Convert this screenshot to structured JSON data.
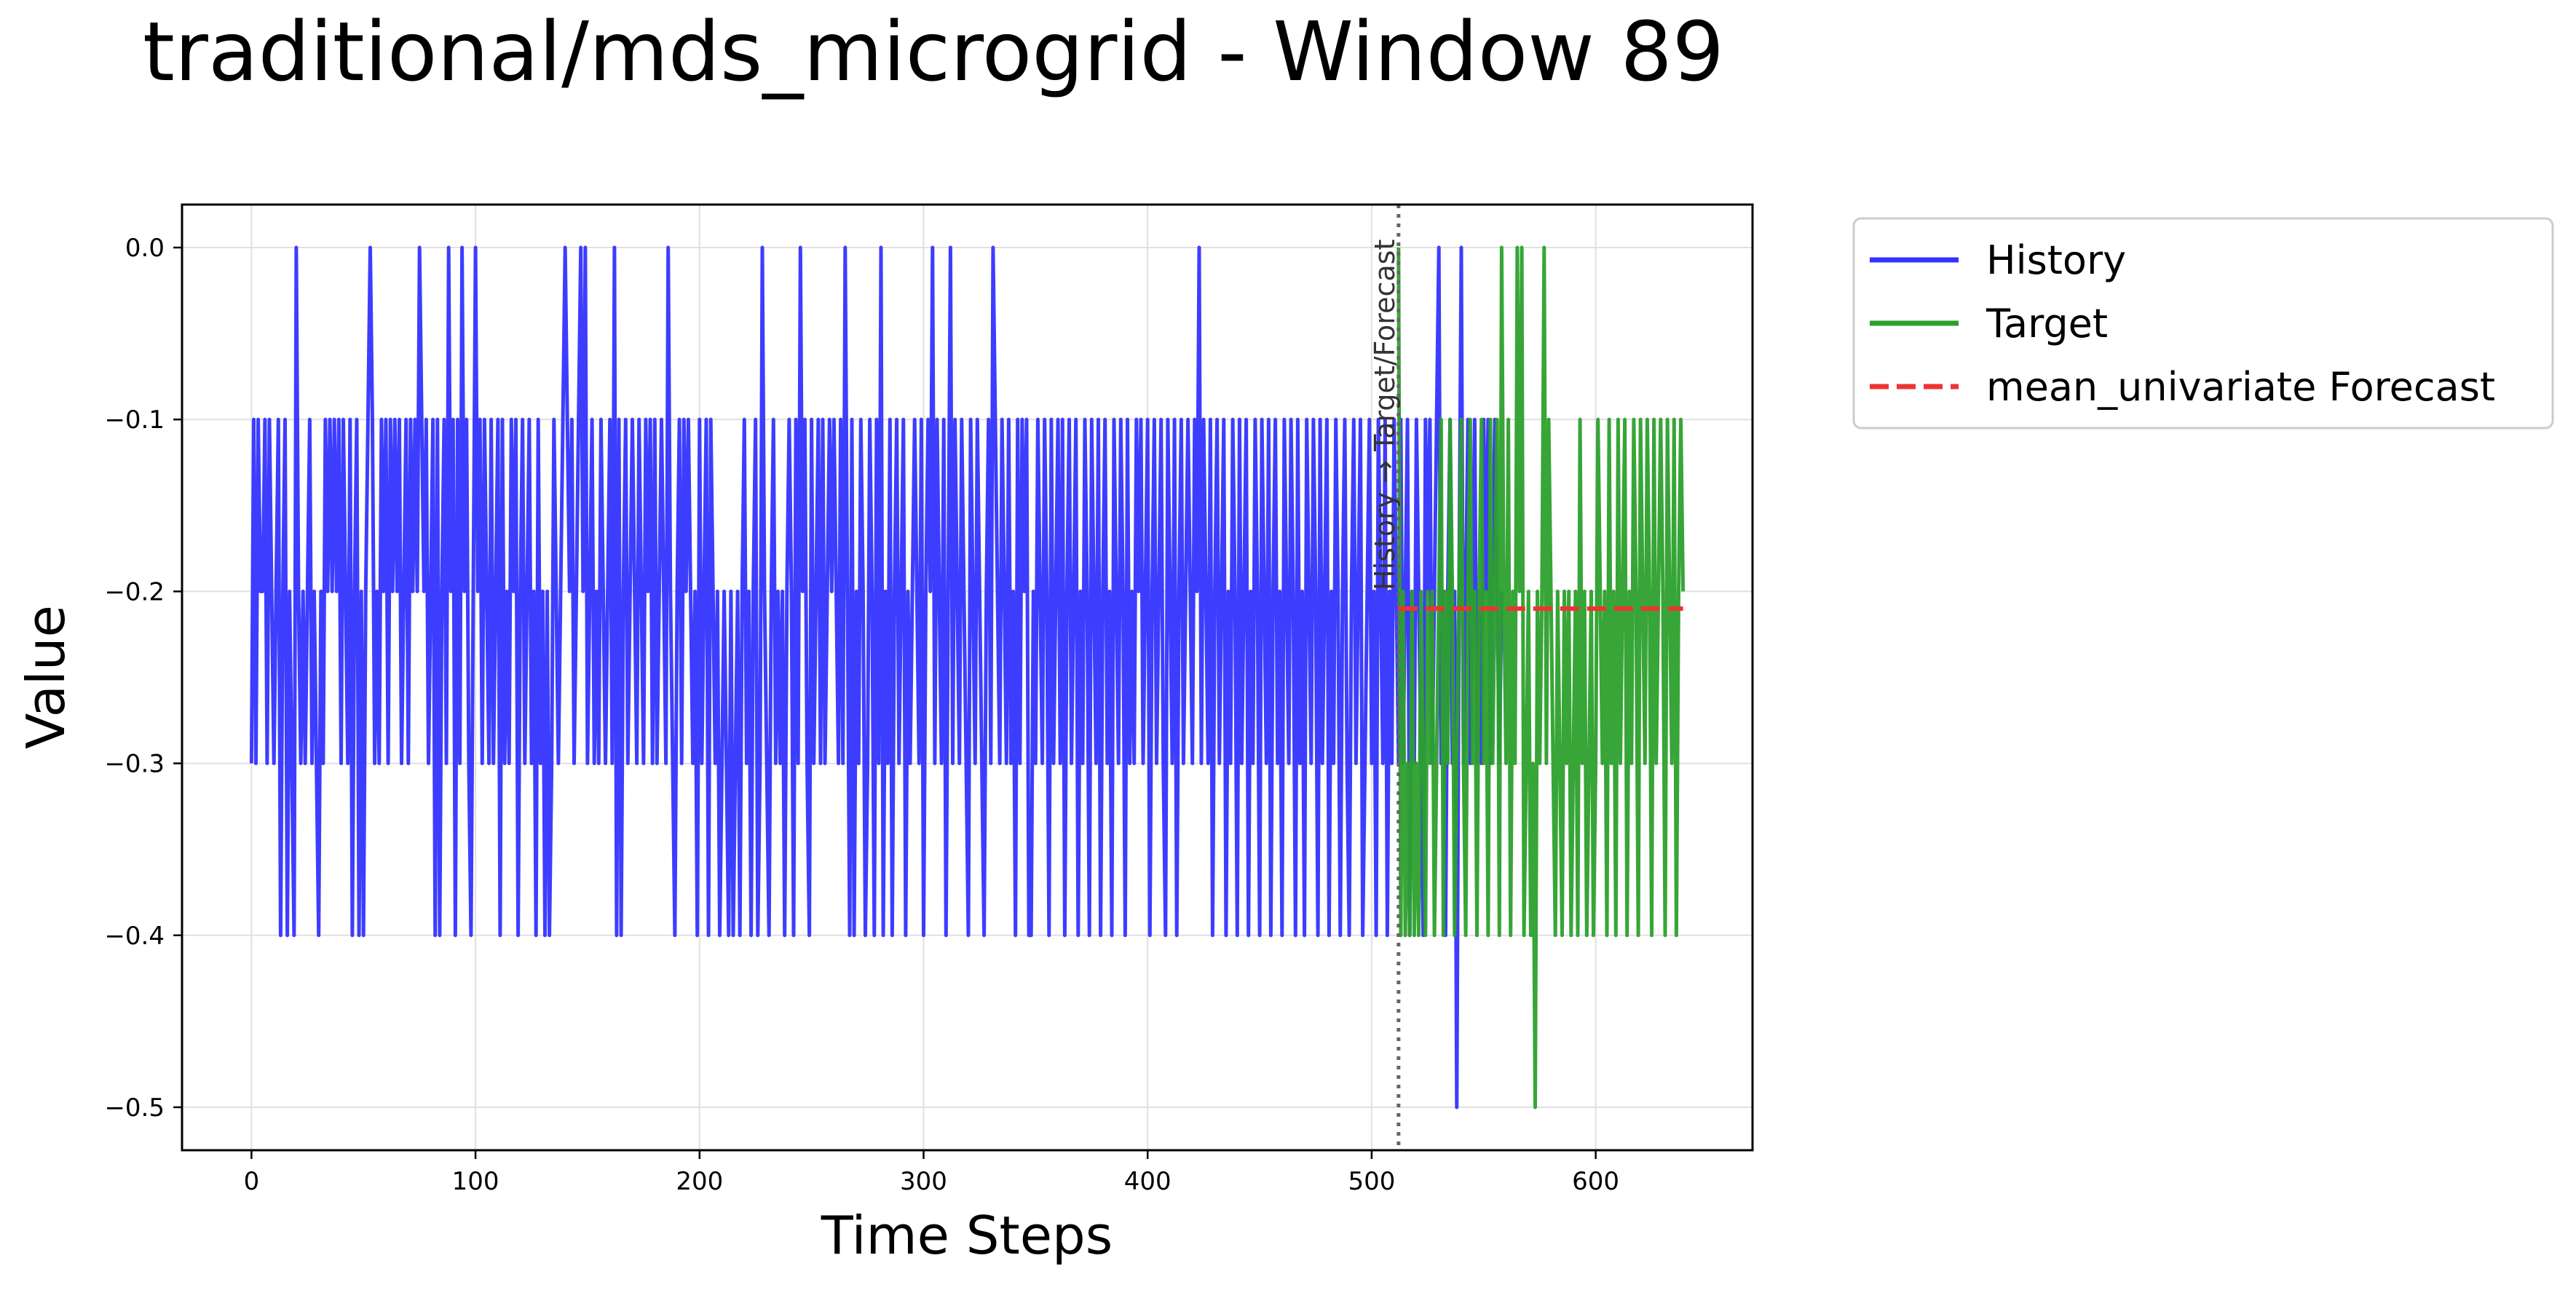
{
  "chart_data": {
    "type": "line",
    "title": "traditional/mds_microgrid - Window 89",
    "xlabel": "Time Steps",
    "ylabel": "Value",
    "xlim": [
      -31,
      670
    ],
    "ylim": [
      -0.525,
      0.025
    ],
    "xticks": [
      0,
      100,
      200,
      300,
      400,
      500,
      600
    ],
    "yticks": [
      0.0,
      -0.1,
      -0.2,
      -0.3,
      -0.4,
      -0.5
    ],
    "ytick_labels": [
      "0.0",
      "−0.1",
      "−0.2",
      "−0.3",
      "−0.4",
      "−0.5"
    ],
    "grid": true,
    "legend_position": "outside-right-top",
    "divider": {
      "x": 512,
      "label": "History → Target/Forecast"
    },
    "series": [
      {
        "name": "History",
        "color": "#3333ff",
        "style": "solid",
        "x_start": 0,
        "values": [
          -0.3,
          -0.1,
          -0.3,
          -0.1,
          -0.2,
          -0.2,
          -0.1,
          -0.3,
          -0.1,
          -0.2,
          -0.3,
          -0.2,
          -0.1,
          -0.4,
          -0.2,
          -0.1,
          -0.4,
          -0.2,
          -0.3,
          -0.4,
          0.0,
          -0.2,
          -0.3,
          -0.2,
          -0.3,
          -0.2,
          -0.1,
          -0.3,
          -0.2,
          -0.3,
          -0.4,
          -0.2,
          -0.3,
          -0.1,
          -0.2,
          -0.1,
          -0.2,
          -0.1,
          -0.2,
          -0.1,
          -0.3,
          -0.1,
          -0.2,
          -0.3,
          -0.1,
          -0.4,
          -0.2,
          -0.1,
          -0.4,
          -0.2,
          -0.4,
          -0.2,
          -0.1,
          0.0,
          -0.1,
          -0.3,
          -0.2,
          -0.3,
          -0.1,
          -0.2,
          -0.1,
          -0.3,
          -0.1,
          -0.2,
          -0.1,
          -0.2,
          -0.1,
          -0.3,
          -0.2,
          -0.1,
          -0.3,
          -0.1,
          -0.2,
          -0.1,
          -0.2,
          0.0,
          -0.1,
          -0.2,
          -0.1,
          -0.3,
          -0.2,
          -0.1,
          -0.4,
          -0.1,
          -0.4,
          -0.2,
          -0.1,
          -0.3,
          0.0,
          -0.2,
          -0.1,
          -0.4,
          -0.1,
          -0.3,
          0.0,
          -0.2,
          -0.1,
          -0.3,
          -0.4,
          -0.2,
          0.0,
          -0.2,
          -0.1,
          -0.3,
          -0.1,
          -0.2,
          -0.3,
          -0.1,
          -0.3,
          -0.2,
          -0.1,
          -0.4,
          -0.1,
          -0.3,
          -0.2,
          -0.3,
          -0.1,
          -0.2,
          -0.1,
          -0.4,
          -0.2,
          -0.1,
          -0.3,
          -0.2,
          -0.1,
          -0.3,
          -0.2,
          -0.4,
          -0.1,
          -0.3,
          -0.2,
          -0.4,
          -0.2,
          -0.4,
          -0.3,
          -0.1,
          -0.2,
          -0.3,
          -0.2,
          -0.1,
          0.0,
          -0.1,
          -0.2,
          -0.1,
          -0.3,
          -0.2,
          -0.1,
          0.0,
          -0.2,
          0.0,
          -0.3,
          -0.2,
          -0.1,
          -0.3,
          -0.2,
          -0.3,
          -0.1,
          -0.2,
          -0.3,
          -0.2,
          -0.1,
          -0.3,
          0.0,
          -0.4,
          -0.1,
          -0.4,
          -0.2,
          -0.1,
          -0.3,
          -0.2,
          -0.1,
          -0.2,
          -0.3,
          -0.1,
          -0.2,
          -0.3,
          -0.1,
          -0.2,
          -0.1,
          -0.3,
          -0.1,
          -0.3,
          -0.2,
          -0.1,
          -0.2,
          -0.3,
          0.0,
          -0.2,
          -0.3,
          -0.4,
          -0.2,
          -0.1,
          -0.3,
          -0.1,
          -0.2,
          -0.1,
          -0.2,
          -0.3,
          -0.2,
          -0.4,
          -0.1,
          -0.3,
          -0.2,
          -0.1,
          -0.4,
          -0.1,
          -0.2,
          -0.3,
          -0.2,
          -0.4,
          -0.3,
          -0.2,
          -0.3,
          -0.4,
          -0.2,
          -0.4,
          -0.3,
          -0.2,
          -0.4,
          -0.2,
          -0.1,
          -0.3,
          -0.2,
          -0.4,
          -0.2,
          -0.1,
          -0.4,
          -0.3,
          0.0,
          -0.2,
          -0.3,
          -0.4,
          -0.2,
          -0.1,
          -0.3,
          -0.2,
          -0.3,
          -0.2,
          -0.4,
          -0.2,
          -0.1,
          -0.2,
          -0.4,
          -0.1,
          -0.3,
          0.0,
          -0.2,
          -0.1,
          -0.3,
          -0.4,
          -0.1,
          -0.3,
          -0.2,
          -0.1,
          -0.3,
          -0.1,
          -0.3,
          -0.2,
          -0.1,
          -0.2,
          -0.1,
          -0.2,
          -0.3,
          -0.1,
          -0.3,
          0.0,
          -0.2,
          -0.4,
          -0.1,
          -0.4,
          -0.2,
          -0.3,
          -0.1,
          -0.2,
          -0.4,
          -0.3,
          -0.1,
          -0.2,
          -0.4,
          -0.1,
          -0.3,
          0.0,
          -0.4,
          -0.2,
          -0.3,
          -0.1,
          -0.4,
          -0.2,
          -0.1,
          -0.3,
          -0.2,
          -0.1,
          -0.4,
          -0.2,
          -0.3,
          -0.2,
          -0.1,
          -0.2,
          -0.3,
          -0.1,
          -0.4,
          -0.2,
          -0.1,
          -0.2,
          0.0,
          -0.3,
          -0.1,
          -0.2,
          -0.3,
          -0.1,
          -0.4,
          -0.2,
          0.0,
          -0.3,
          -0.1,
          -0.2,
          -0.3,
          -0.1,
          -0.2,
          -0.3,
          -0.4,
          -0.1,
          -0.2,
          -0.3,
          -0.1,
          -0.2,
          -0.3,
          -0.4,
          -0.2,
          -0.1,
          -0.3,
          0.0,
          -0.1,
          -0.2,
          -0.3,
          -0.1,
          -0.2,
          -0.3,
          -0.1,
          -0.3,
          -0.2,
          -0.4,
          -0.1,
          -0.3,
          -0.1,
          -0.2,
          -0.1,
          -0.4,
          -0.4,
          -0.2,
          -0.3,
          -0.1,
          -0.2,
          -0.3,
          -0.1,
          -0.2,
          -0.4,
          -0.1,
          -0.3,
          -0.2,
          -0.1,
          -0.3,
          -0.1,
          -0.4,
          -0.2,
          -0.1,
          -0.3,
          -0.2,
          -0.1,
          -0.4,
          -0.2,
          -0.3,
          -0.1,
          -0.2,
          -0.4,
          -0.1,
          -0.2,
          -0.3,
          -0.1,
          -0.4,
          -0.2,
          -0.1,
          -0.3,
          -0.2,
          -0.4,
          -0.1,
          -0.2,
          -0.3,
          -0.1,
          -0.2,
          -0.4,
          -0.1,
          -0.3,
          -0.2,
          -0.3,
          -0.1,
          -0.2,
          -0.1,
          -0.3,
          -0.2,
          -0.1,
          -0.4,
          -0.2,
          -0.1,
          -0.3,
          -0.2,
          -0.1,
          -0.3,
          -0.4,
          -0.1,
          -0.2,
          -0.3,
          -0.1,
          -0.4,
          -0.2,
          -0.1,
          -0.3,
          -0.2,
          -0.1,
          -0.2,
          -0.3,
          -0.1,
          -0.2,
          0.0,
          -0.3,
          -0.1,
          -0.2,
          -0.3,
          -0.1,
          -0.4,
          -0.2,
          -0.1,
          -0.3,
          -0.2,
          -0.1,
          -0.4,
          -0.2,
          -0.3,
          -0.1,
          -0.2,
          -0.4,
          -0.1,
          -0.3,
          -0.2,
          -0.1,
          -0.4,
          -0.2,
          -0.3,
          -0.1,
          -0.2,
          -0.4,
          -0.1,
          -0.2,
          -0.3,
          -0.1,
          -0.4,
          -0.2,
          -0.1,
          -0.3,
          -0.2,
          -0.4,
          -0.1,
          -0.2,
          -0.3,
          -0.1,
          -0.2,
          -0.4,
          -0.1,
          -0.3,
          -0.2,
          -0.4,
          -0.1,
          -0.2,
          -0.3,
          -0.1,
          -0.2,
          -0.4,
          -0.1,
          -0.3,
          -0.2,
          -0.1,
          -0.4,
          -0.2,
          -0.3,
          -0.1,
          -0.2,
          -0.4,
          -0.2,
          -0.1,
          -0.3,
          -0.4,
          -0.2,
          -0.1,
          -0.3,
          -0.2,
          -0.1,
          -0.4,
          -0.3,
          -0.2,
          -0.1,
          -0.3,
          -0.2,
          -0.4,
          -0.1,
          -0.2,
          -0.3,
          -0.1,
          -0.4,
          -0.2,
          -0.3,
          -0.1,
          -0.2,
          -0.3,
          -0.1,
          -0.3,
          -0.2,
          -0.1,
          -0.4,
          -0.2,
          -0.3,
          -0.1,
          -0.2,
          -0.3,
          -0.4,
          -0.1,
          -0.2,
          -0.1,
          -0.3,
          -0.2,
          -0.1,
          0.0,
          -0.3,
          -0.2,
          -0.4,
          -0.2,
          -0.1,
          -0.3,
          -0.2,
          -0.5,
          -0.2,
          0.0,
          -0.3,
          -0.2,
          -0.1,
          -0.3,
          -0.2,
          -0.1,
          -0.3,
          -0.2,
          -0.3,
          -0.1,
          -0.2,
          -0.1,
          -0.3,
          -0.2,
          -0.1,
          -0.2,
          -0.3,
          -0.2
        ]
      },
      {
        "name": "Target",
        "color": "#2ca02c",
        "style": "solid",
        "x_start": 512,
        "values": [
          0.0,
          -0.4,
          -0.2,
          -0.4,
          -0.3,
          -0.4,
          -0.2,
          -0.4,
          -0.3,
          -0.4,
          -0.2,
          -0.3,
          -0.4,
          -0.2,
          -0.3,
          -0.2,
          -0.4,
          -0.3,
          -0.2,
          -0.1,
          -0.4,
          -0.2,
          -0.3,
          -0.1,
          -0.2,
          -0.4,
          -0.3,
          -0.2,
          -0.1,
          -0.3,
          -0.4,
          -0.2,
          -0.1,
          -0.3,
          -0.2,
          -0.4,
          -0.2,
          -0.1,
          -0.3,
          -0.2,
          -0.4,
          -0.1,
          -0.3,
          -0.2,
          -0.1,
          -0.4,
          0.0,
          -0.2,
          -0.3,
          -0.1,
          -0.4,
          -0.2,
          -0.3,
          0.0,
          -0.2,
          0.0,
          -0.4,
          -0.3,
          -0.2,
          -0.4,
          -0.3,
          -0.5,
          -0.2,
          -0.3,
          -0.2,
          0.0,
          -0.3,
          -0.1,
          -0.2,
          -0.3,
          -0.4,
          -0.2,
          -0.3,
          -0.4,
          -0.2,
          -0.3,
          -0.2,
          -0.4,
          -0.3,
          -0.2,
          -0.4,
          -0.1,
          -0.3,
          -0.2,
          -0.4,
          -0.3,
          -0.2,
          -0.4,
          -0.3,
          -0.1,
          -0.2,
          -0.3,
          -0.2,
          -0.4,
          -0.1,
          -0.3,
          -0.2,
          -0.4,
          -0.1,
          -0.3,
          -0.2,
          -0.1,
          -0.4,
          -0.2,
          -0.3,
          -0.1,
          -0.2,
          -0.4,
          -0.1,
          -0.2,
          -0.3,
          -0.1,
          -0.2,
          -0.4,
          -0.1,
          -0.3,
          -0.2,
          -0.1,
          -0.2,
          -0.4,
          -0.1,
          -0.2,
          -0.3,
          -0.1,
          -0.4,
          -0.2,
          -0.1,
          -0.2
        ]
      },
      {
        "name": "mean_univariate Forecast",
        "color": "#ff0000",
        "style": "dashed",
        "x": [
          512,
          639
        ],
        "values": [
          -0.21,
          -0.21
        ]
      }
    ]
  },
  "colors": {
    "history": "#3333ff",
    "target": "#2ca02c",
    "forecast": "#ee3333",
    "grid": "#e0e0e0",
    "divider": "#666666"
  }
}
